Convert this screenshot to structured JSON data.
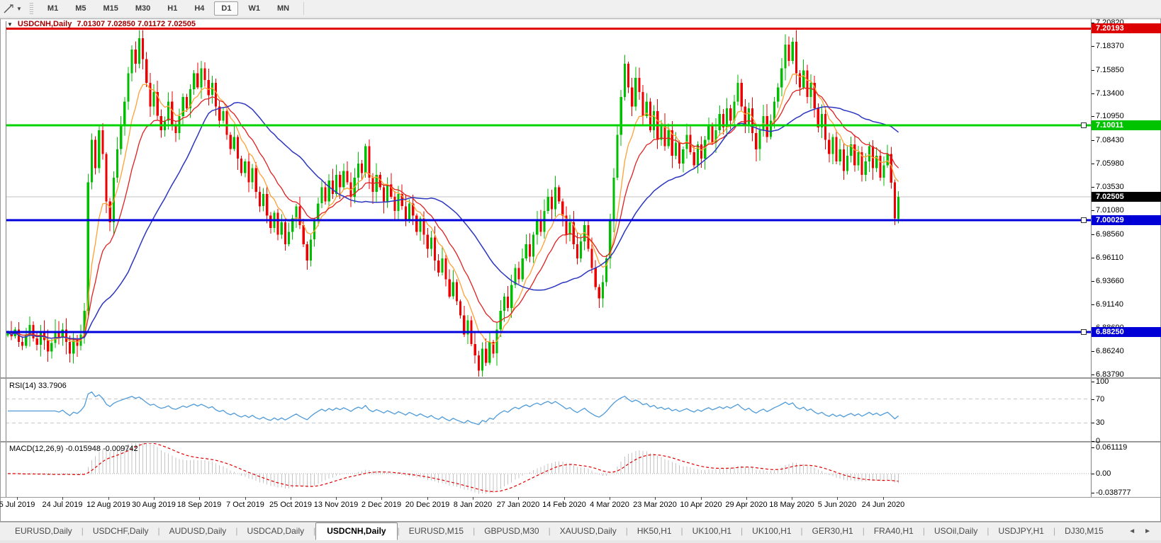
{
  "toolbar": {
    "timeframes": [
      "M1",
      "M5",
      "M15",
      "M30",
      "H1",
      "H4",
      "D1",
      "W1",
      "MN"
    ],
    "active_timeframe": "D1",
    "dropdown_caret": "▼"
  },
  "icons": {
    "title_caret": "▼",
    "scroll_left": "◄",
    "scroll_right": "►"
  },
  "chart": {
    "title_symbol": "USDCNH,Daily",
    "title_ohlc": "7.01307 7.02850 7.01172 7.02505",
    "price_axis_ticks": [
      "7.20820",
      "7.18370",
      "7.15850",
      "7.13400",
      "7.10950",
      "7.08430",
      "7.05980",
      "7.03530",
      "7.01080",
      "6.98560",
      "6.96110",
      "6.93660",
      "6.91140",
      "6.88690",
      "6.86240",
      "6.83790"
    ],
    "badges": [
      {
        "text": "7.20193",
        "color": "#dd0000"
      },
      {
        "text": "7.10011",
        "color": "#00c300"
      },
      {
        "text": "7.02505",
        "color": "#000000"
      },
      {
        "text": "7.00029",
        "color": "#0000d6"
      },
      {
        "text": "6.88250",
        "color": "#0000d6"
      }
    ],
    "hlines": [
      {
        "price": 7.20193,
        "color": "#e00000",
        "width": 3,
        "handle": false
      },
      {
        "price": 7.10011,
        "color": "#00d400",
        "width": 3,
        "handle": true
      },
      {
        "price": 7.00029,
        "color": "#0000dd",
        "width": 3,
        "handle": true
      },
      {
        "price": 6.8825,
        "color": "#0000dd",
        "width": 3,
        "handle": true
      }
    ],
    "current_price_line": {
      "price": 7.02505,
      "color": "#c0c0c0",
      "width": 1
    },
    "colors": {
      "candle_up": "#00be00",
      "candle_down": "#ec0000",
      "ma_fast": "#ffa133",
      "ma_medium": "#e02020",
      "ma_slow": "#2b35c0",
      "rsi_line": "#4f9bd9",
      "macd_histogram": "#c4c4c4",
      "macd_signal": "#e00000",
      "title_text": "#a00000"
    }
  },
  "rsi_pane": {
    "label": "RSI(14) 33.7906",
    "ticks": [
      "100",
      "70",
      "30",
      "0"
    ],
    "tick_values": [
      100,
      70,
      30,
      0
    ],
    "dashed_levels": [
      70,
      30
    ]
  },
  "macd_pane": {
    "label": "MACD(12,26,9) -0.015948 -0.009742",
    "ticks": [
      "0.061119",
      "0.00",
      "-0.038777"
    ],
    "tick_values": [
      0.061119,
      0.0,
      -0.038777
    ]
  },
  "date_axis": {
    "labels": [
      "5 Jul 2019",
      "24 Jul 2019",
      "12 Aug 2019",
      "30 Aug 2019",
      "18 Sep 2019",
      "7 Oct 2019",
      "25 Oct 2019",
      "13 Nov 2019",
      "2 Dec 2019",
      "20 Dec 2019",
      "8 Jan 2020",
      "27 Jan 2020",
      "14 Feb 2020",
      "4 Mar 2020",
      "23 Mar 2020",
      "10 Apr 2020",
      "29 Apr 2020",
      "18 May 2020",
      "5 Jun 2020",
      "24 Jun 2020"
    ]
  },
  "tabs": {
    "items": [
      "EURUSD,Daily",
      "USDCHF,Daily",
      "AUDUSD,Daily",
      "USDCAD,Daily",
      "USDCNH,Daily",
      "EURUSD,M15",
      "GBPUSD,M30",
      "XAUUSD,Daily",
      "HK50,H1",
      "UK100,H1",
      "UK100,H1",
      "GER30,H1",
      "FRA40,H1",
      "USOil,Daily",
      "USDJPY,H1",
      "DJ30,M15"
    ],
    "active": "USDCNH,Daily"
  },
  "chart_data": {
    "type": "candlestick",
    "symbol": "USDCNH",
    "period": "Daily",
    "ohlc_display": {
      "open": "7.01307",
      "high": "7.02850",
      "low": "7.01172",
      "close": "7.02505"
    },
    "y_range_visible": [
      6.8379,
      7.2097
    ],
    "price_levels": {
      "resistance_red": 7.20193,
      "green_level": 7.10011,
      "current_close": 7.02505,
      "support_blue_upper": 7.00029,
      "support_blue_lower": 6.8825
    },
    "closes": [
      6.882,
      6.878,
      6.885,
      6.872,
      6.868,
      6.88,
      6.89,
      6.876,
      6.869,
      6.882,
      6.874,
      6.862,
      6.871,
      6.883,
      6.877,
      6.885,
      6.872,
      6.86,
      6.874,
      6.868,
      6.88,
      6.905,
      7.04,
      7.085,
      7.055,
      7.095,
      7.07,
      7.02,
      6.998,
      7.045,
      7.075,
      7.1,
      7.125,
      7.155,
      7.18,
      7.165,
      7.192,
      7.17,
      7.145,
      7.12,
      7.135,
      7.11,
      7.095,
      7.105,
      7.125,
      7.1,
      7.092,
      7.11,
      7.13,
      7.118,
      7.138,
      7.155,
      7.14,
      7.16,
      7.148,
      7.132,
      7.145,
      7.12,
      7.105,
      7.115,
      7.09,
      7.075,
      7.088,
      7.065,
      7.05,
      7.062,
      7.04,
      7.055,
      7.03,
      7.015,
      7.028,
      7.005,
      6.992,
      7.008,
      6.985,
      6.998,
      6.975,
      6.988,
      7.002,
      7.015,
      6.995,
      6.975,
      6.958,
      6.98,
      7.0,
      7.018,
      7.035,
      7.02,
      7.042,
      7.028,
      7.048,
      7.035,
      7.052,
      7.04,
      7.025,
      7.045,
      7.06,
      7.05,
      7.078,
      7.045,
      7.03,
      7.048,
      7.035,
      7.02,
      7.038,
      7.025,
      7.01,
      7.028,
      7.015,
      7.0,
      7.018,
      7.005,
      6.988,
      7.002,
      6.985,
      6.97,
      6.982,
      6.958,
      6.945,
      6.96,
      6.938,
      6.92,
      6.935,
      6.915,
      6.9,
      6.88,
      6.895,
      6.87,
      6.858,
      6.842,
      6.865,
      6.85,
      6.872,
      6.86,
      6.885,
      6.905,
      6.92,
      6.908,
      6.932,
      6.95,
      6.938,
      6.96,
      6.975,
      6.962,
      6.985,
      7.0,
      6.988,
      7.01,
      7.025,
      7.012,
      7.035,
      7.02,
      7.005,
      6.985,
      6.998,
      6.975,
      6.96,
      6.978,
      6.995,
      6.97,
      6.95,
      6.93,
      6.918,
      6.935,
      6.96,
      7.0,
      7.045,
      7.09,
      7.13,
      7.165,
      7.14,
      7.12,
      7.15,
      7.135,
      7.11,
      7.125,
      7.095,
      7.115,
      7.085,
      7.1,
      7.078,
      7.095,
      7.068,
      7.082,
      7.06,
      7.075,
      7.09,
      7.072,
      7.058,
      7.08,
      7.065,
      7.085,
      7.1,
      7.082,
      7.095,
      7.112,
      7.098,
      7.118,
      7.105,
      7.125,
      7.145,
      7.12,
      7.1,
      7.118,
      7.092,
      7.075,
      7.095,
      7.11,
      7.088,
      7.105,
      7.125,
      7.14,
      7.16,
      7.185,
      7.168,
      7.188,
      7.155,
      7.14,
      7.158,
      7.13,
      7.145,
      7.118,
      7.098,
      7.112,
      7.085,
      7.07,
      7.088,
      7.062,
      7.075,
      7.052,
      7.068,
      7.08,
      7.058,
      7.072,
      7.048,
      7.062,
      7.078,
      7.055,
      7.068,
      7.045,
      7.058,
      7.07,
      7.04,
      7.002,
      7.025
    ],
    "moving_averages": [
      {
        "name": "fast-ma",
        "type": "ema",
        "period": 8,
        "color": "#ffa133"
      },
      {
        "name": "medium-ma",
        "type": "ema",
        "period": 16,
        "color": "#e02020"
      },
      {
        "name": "slow-ma",
        "type": "sma",
        "period": 34,
        "color": "#2b35c0"
      }
    ],
    "indicators": {
      "rsi": {
        "period": 14,
        "current_value": 33.7906,
        "levels": [
          70,
          30
        ],
        "range": [
          0,
          100
        ]
      },
      "macd": {
        "fast": 12,
        "slow": 26,
        "signal": 9,
        "current_value": -0.015948,
        "current_signal": -0.009742,
        "axis_max": 0.061119,
        "axis_min": -0.038777
      }
    }
  }
}
